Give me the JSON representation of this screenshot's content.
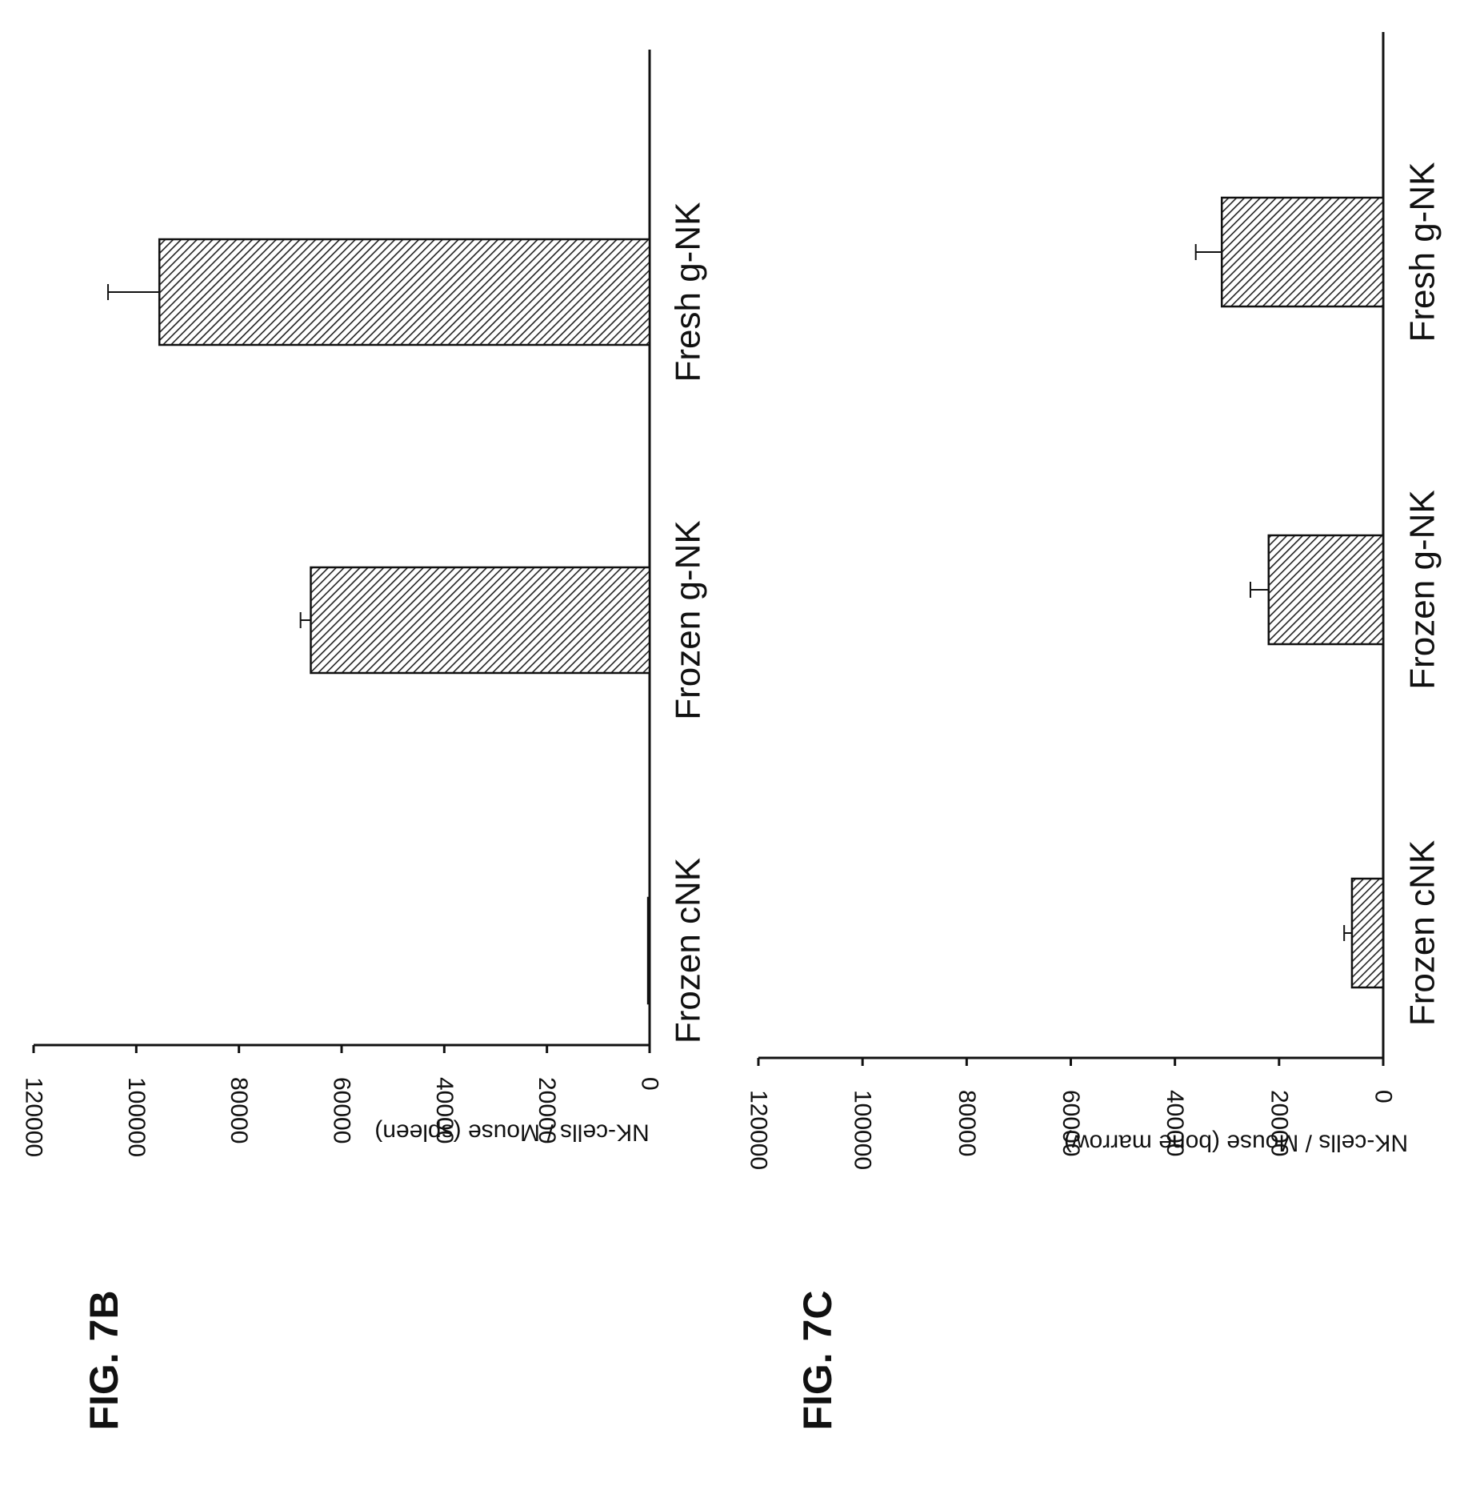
{
  "chart_data": [
    {
      "figure_label": "FIG. 7B",
      "type": "bar",
      "categories": [
        "Frozen cNK",
        "Frozen g-NK",
        "Fresh g-NK"
      ],
      "values": [
        300,
        66000,
        95500
      ],
      "errors": [
        0,
        2000,
        10000
      ],
      "ylabel": "NK-cells / Mouse (spleen)",
      "ylim": [
        0,
        120000
      ],
      "yticks": [
        0,
        20000,
        40000,
        60000,
        80000,
        100000,
        120000
      ],
      "ytick_labels": [
        "0",
        "20000",
        "40000",
        "60000",
        "80000",
        "100000",
        "120000"
      ],
      "orientation": "rotated 90° clockwise",
      "bar_fill": "diagonal-hatch",
      "grid": false
    },
    {
      "figure_label": "FIG. 7C",
      "type": "bar",
      "categories": [
        "Frozen cNK",
        "Frozen g-NK",
        "Fresh g-NK"
      ],
      "values": [
        6000,
        22000,
        31000
      ],
      "errors": [
        1500,
        3500,
        5000
      ],
      "ylabel": "NK-cells / Mouse (bone marrow)",
      "ylim": [
        0,
        120000
      ],
      "yticks": [
        0,
        20000,
        40000,
        60000,
        80000,
        100000,
        120000
      ],
      "ytick_labels": [
        "0",
        "20000",
        "40000",
        "60000",
        "80000",
        "100000",
        "120000"
      ],
      "orientation": "rotated 90° clockwise",
      "bar_fill": "diagonal-hatch",
      "grid": false
    }
  ],
  "colors": {
    "ink": "#111111",
    "bar": "#555555",
    "background": "#ffffff"
  }
}
